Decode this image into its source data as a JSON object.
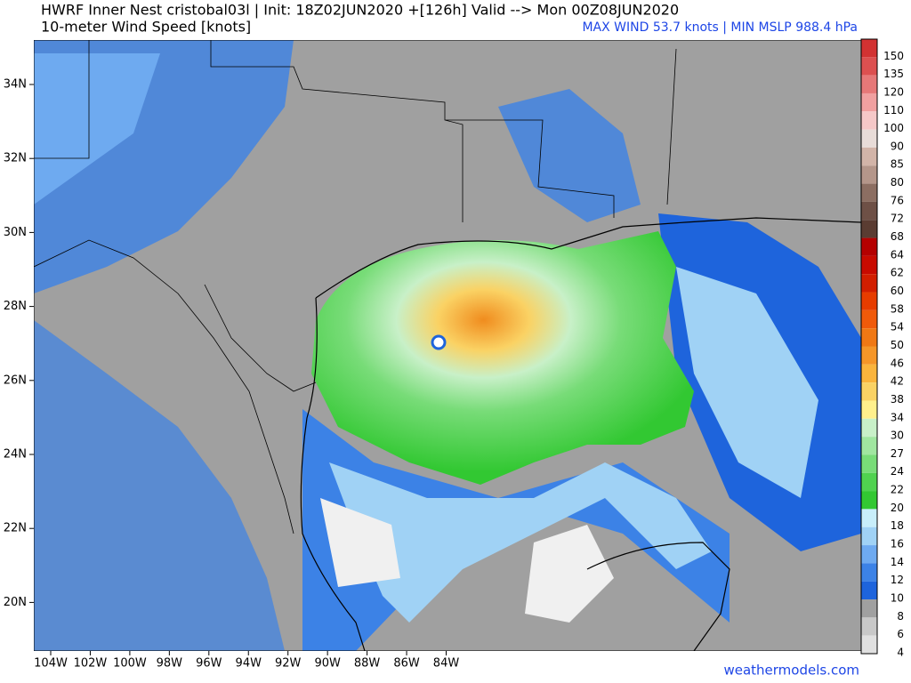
{
  "header": {
    "title": "HWRF Inner Nest  cristobal03l | Init: 18Z02JUN2020 +[126h] Valid --> Mon 00Z08JUN2020",
    "subtitle": "10-meter Wind Speed [knots]",
    "stats": "MAX WIND 53.7 knots | MIN MSLP 988.4 hPa"
  },
  "map": {
    "lat_labels": [
      "34N",
      "32N",
      "30N",
      "28N",
      "26N",
      "24N",
      "22N",
      "20N"
    ],
    "lon_labels": [
      "104W",
      "102W",
      "100W",
      "98W",
      "96W",
      "94W",
      "92W",
      "90W",
      "88W",
      "86W",
      "84W"
    ]
  },
  "colorbar": {
    "labels": [
      "150",
      "135",
      "120",
      "110",
      "100",
      "90",
      "85",
      "80",
      "76",
      "72",
      "68",
      "64",
      "62",
      "60",
      "58",
      "54",
      "50",
      "46",
      "42",
      "38",
      "34",
      "30",
      "27",
      "24",
      "22",
      "20",
      "18",
      "16",
      "14",
      "12",
      "10",
      "8",
      "6",
      "4"
    ]
  },
  "footer": {
    "credit": "weathermodels.com"
  }
}
